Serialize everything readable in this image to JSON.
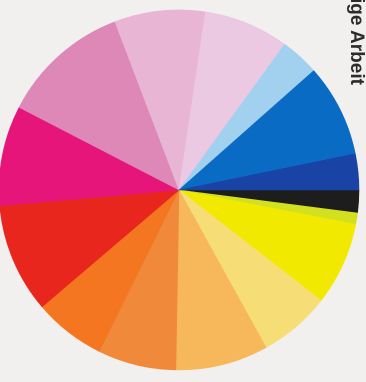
{
  "side_text": "ige Arbeit",
  "chart_data": {
    "type": "pie",
    "title": "",
    "start_angle_deg": 0,
    "direction": "clockwise",
    "slices": [
      {
        "value": 2.4,
        "color": "#1d1d1d"
      },
      {
        "value": 1.2,
        "color": "#d2e020"
      },
      {
        "value": 8.8,
        "color": "#f1ea00"
      },
      {
        "value": 7.6,
        "color": "#f7dd75"
      },
      {
        "value": 9.8,
        "color": "#f7b85c"
      },
      {
        "value": 8.3,
        "color": "#f08a3a"
      },
      {
        "value": 7.6,
        "color": "#f47621"
      },
      {
        "value": 11.6,
        "color": "#e8261e"
      },
      {
        "value": 10.6,
        "color": "#e5157a"
      },
      {
        "value": 13.7,
        "color": "#dd88b7"
      },
      {
        "value": 9.6,
        "color": "#e8b5d4"
      },
      {
        "value": 9.0,
        "color": "#ecc9e2"
      },
      {
        "value": 4.1,
        "color": "#a2d0ef"
      },
      {
        "value": 9.8,
        "color": "#0a6bc5"
      },
      {
        "value": 3.8,
        "color": "#1944a6"
      }
    ]
  }
}
